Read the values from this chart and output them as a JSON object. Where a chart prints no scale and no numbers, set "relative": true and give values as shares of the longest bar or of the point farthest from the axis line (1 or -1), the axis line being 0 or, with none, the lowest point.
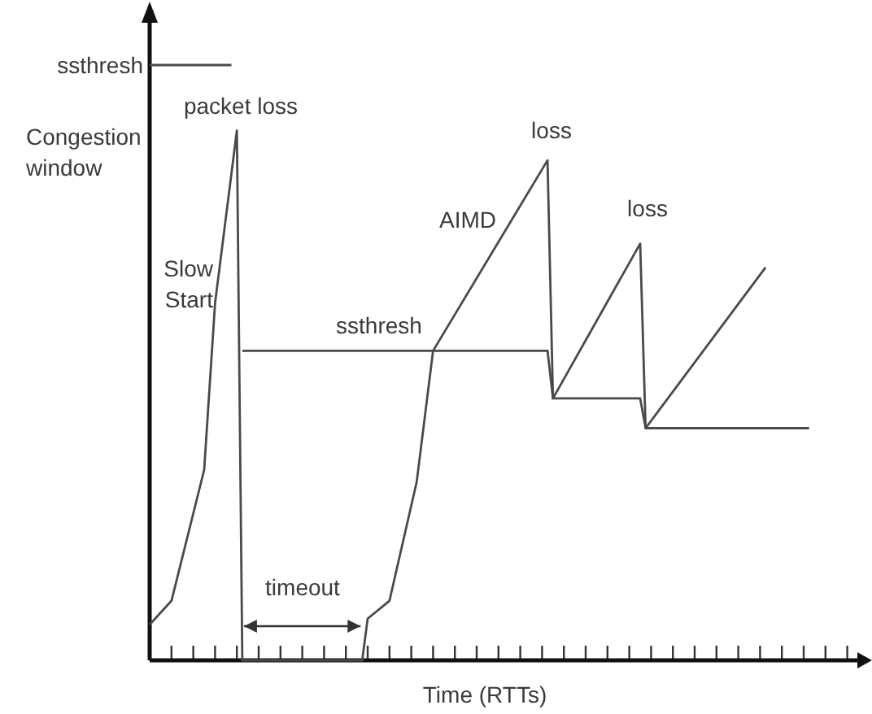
{
  "chart_data": {
    "type": "line",
    "relative": true,
    "xlabel": "Time (RTTs)",
    "ylabel": "Congestion window",
    "categories": [
      null,
      null,
      null,
      null,
      null,
      null,
      null,
      null,
      null,
      null,
      null,
      null,
      null,
      null,
      null,
      null,
      null,
      null,
      null,
      null,
      null,
      null,
      null,
      null,
      null,
      null,
      null,
      null,
      null,
      null,
      null,
      null,
      null,
      null,
      null,
      null,
      null,
      null,
      null,
      null,
      null,
      null,
      null,
      null,
      null,
      null,
      null,
      null,
      null,
      null,
      null,
      null,
      null,
      null,
      null,
      null,
      null,
      null,
      null,
      null,
      null,
      null,
      null,
      null,
      null,
      null,
      null,
      null,
      null,
      null,
      null,
      null,
      null,
      null,
      null,
      null,
      null,
      null,
      null,
      null,
      null,
      null,
      null,
      null,
      null,
      null,
      null,
      null,
      null,
      null,
      null,
      null,
      null,
      null,
      null,
      null,
      null,
      null,
      null,
      null,
      null,
      null,
      null,
      null,
      null,
      null,
      null,
      null,
      null,
      null,
      null,
      null,
      null,
      null,
      null,
      null,
      null,
      null,
      null,
      null,
      null,
      null,
      null,
      null,
      null,
      null,
      null,
      null,
      null,
      null
    ],
    "series": [
      {
        "color": "#4a4a4a",
        "values": [
          0.06,
          null,
          null,
          null,
          0.1,
          null,
          null,
          null,
          null,
          null,
          0.32,
          null,
          0.6,
          null,
          null,
          null,
          0.89,
          0,
          null,
          null,
          null,
          null,
          null,
          null,
          null,
          null,
          null,
          null,
          null,
          null,
          null,
          null,
          null,
          null,
          null,
          null,
          null,
          null,
          null,
          0,
          0.07,
          null,
          null,
          null,
          0.1,
          null,
          null,
          null,
          null,
          0.3,
          null,
          null,
          0.52,
          null,
          null,
          null,
          null,
          null,
          null,
          null,
          null,
          null,
          null,
          null,
          null,
          null,
          null,
          null,
          null,
          null,
          null,
          null,
          null,
          0.84,
          0.44,
          null,
          null,
          null,
          null,
          null,
          null,
          null,
          null,
          null,
          null,
          null,
          null,
          null,
          null,
          null,
          0.7,
          0.39,
          null,
          null,
          null,
          null,
          null,
          null,
          null,
          null,
          null,
          null,
          null,
          null,
          null,
          null,
          null,
          null,
          null,
          null,
          null,
          null,
          null,
          0.66,
          null,
          null,
          null,
          null,
          null,
          null,
          null,
          null,
          null,
          null,
          null,
          null,
          null,
          null,
          null,
          null
        ]
      },
      {
        "color": "#4a4a4a",
        "values": [
          null,
          null,
          null,
          null,
          null,
          null,
          null,
          null,
          null,
          null,
          null,
          null,
          null,
          null,
          null,
          null,
          null,
          0.52,
          null,
          null,
          null,
          null,
          null,
          null,
          null,
          null,
          null,
          null,
          null,
          null,
          null,
          null,
          null,
          null,
          null,
          null,
          null,
          null,
          null,
          null,
          null,
          null,
          null,
          null,
          null,
          null,
          null,
          null,
          null,
          null,
          null,
          null,
          null,
          null,
          null,
          null,
          null,
          null,
          null,
          null,
          null,
          null,
          null,
          null,
          null,
          null,
          null,
          null,
          null,
          null,
          null,
          null,
          null,
          0.52,
          0.44,
          null,
          null,
          null,
          null,
          null,
          null,
          null,
          null,
          null,
          null,
          null,
          null,
          null,
          null,
          null,
          0.44,
          0.39,
          null,
          null,
          null,
          null,
          null,
          null,
          null,
          null,
          null,
          null,
          null,
          null,
          null,
          null,
          null,
          null,
          null,
          null,
          null,
          null,
          null,
          null,
          null,
          null,
          null,
          null,
          null,
          null,
          null,
          0.39,
          null,
          null,
          null,
          null,
          null,
          null,
          null,
          null
        ]
      },
      {
        "color": "#4a4a4a",
        "values": [
          1,
          null,
          null,
          null,
          null,
          null,
          null,
          null,
          null,
          null,
          null,
          null,
          null,
          null,
          null,
          1,
          null,
          null,
          null,
          null,
          null,
          null,
          null,
          null,
          null,
          null,
          null,
          null,
          null,
          null,
          null,
          null,
          null,
          null,
          null,
          null,
          null,
          null,
          null,
          null,
          null,
          null,
          null,
          null,
          null,
          null,
          null,
          null,
          null,
          null,
          null,
          null,
          null,
          null,
          null,
          null,
          null,
          null,
          null,
          null,
          null,
          null,
          null,
          null,
          null,
          null,
          null,
          null,
          null,
          null,
          null,
          null,
          null,
          null,
          null,
          null,
          null,
          null,
          null,
          null,
          null,
          null,
          null,
          null,
          null,
          null,
          null,
          null,
          null,
          null,
          null,
          null,
          null,
          null,
          null,
          null,
          null,
          null,
          null,
          null,
          null,
          null,
          null,
          null,
          null,
          null,
          null,
          null,
          null,
          null,
          null,
          null,
          null,
          null,
          null,
          null,
          null,
          null,
          null,
          null,
          null,
          null,
          null,
          null,
          null,
          null,
          null,
          null,
          null,
          null
        ]
      }
    ],
    "annotations": [
      "ssthresh",
      "packet loss",
      "Slow Start",
      "ssthresh",
      "AIMD",
      "loss",
      "loss",
      "timeout"
    ]
  }
}
